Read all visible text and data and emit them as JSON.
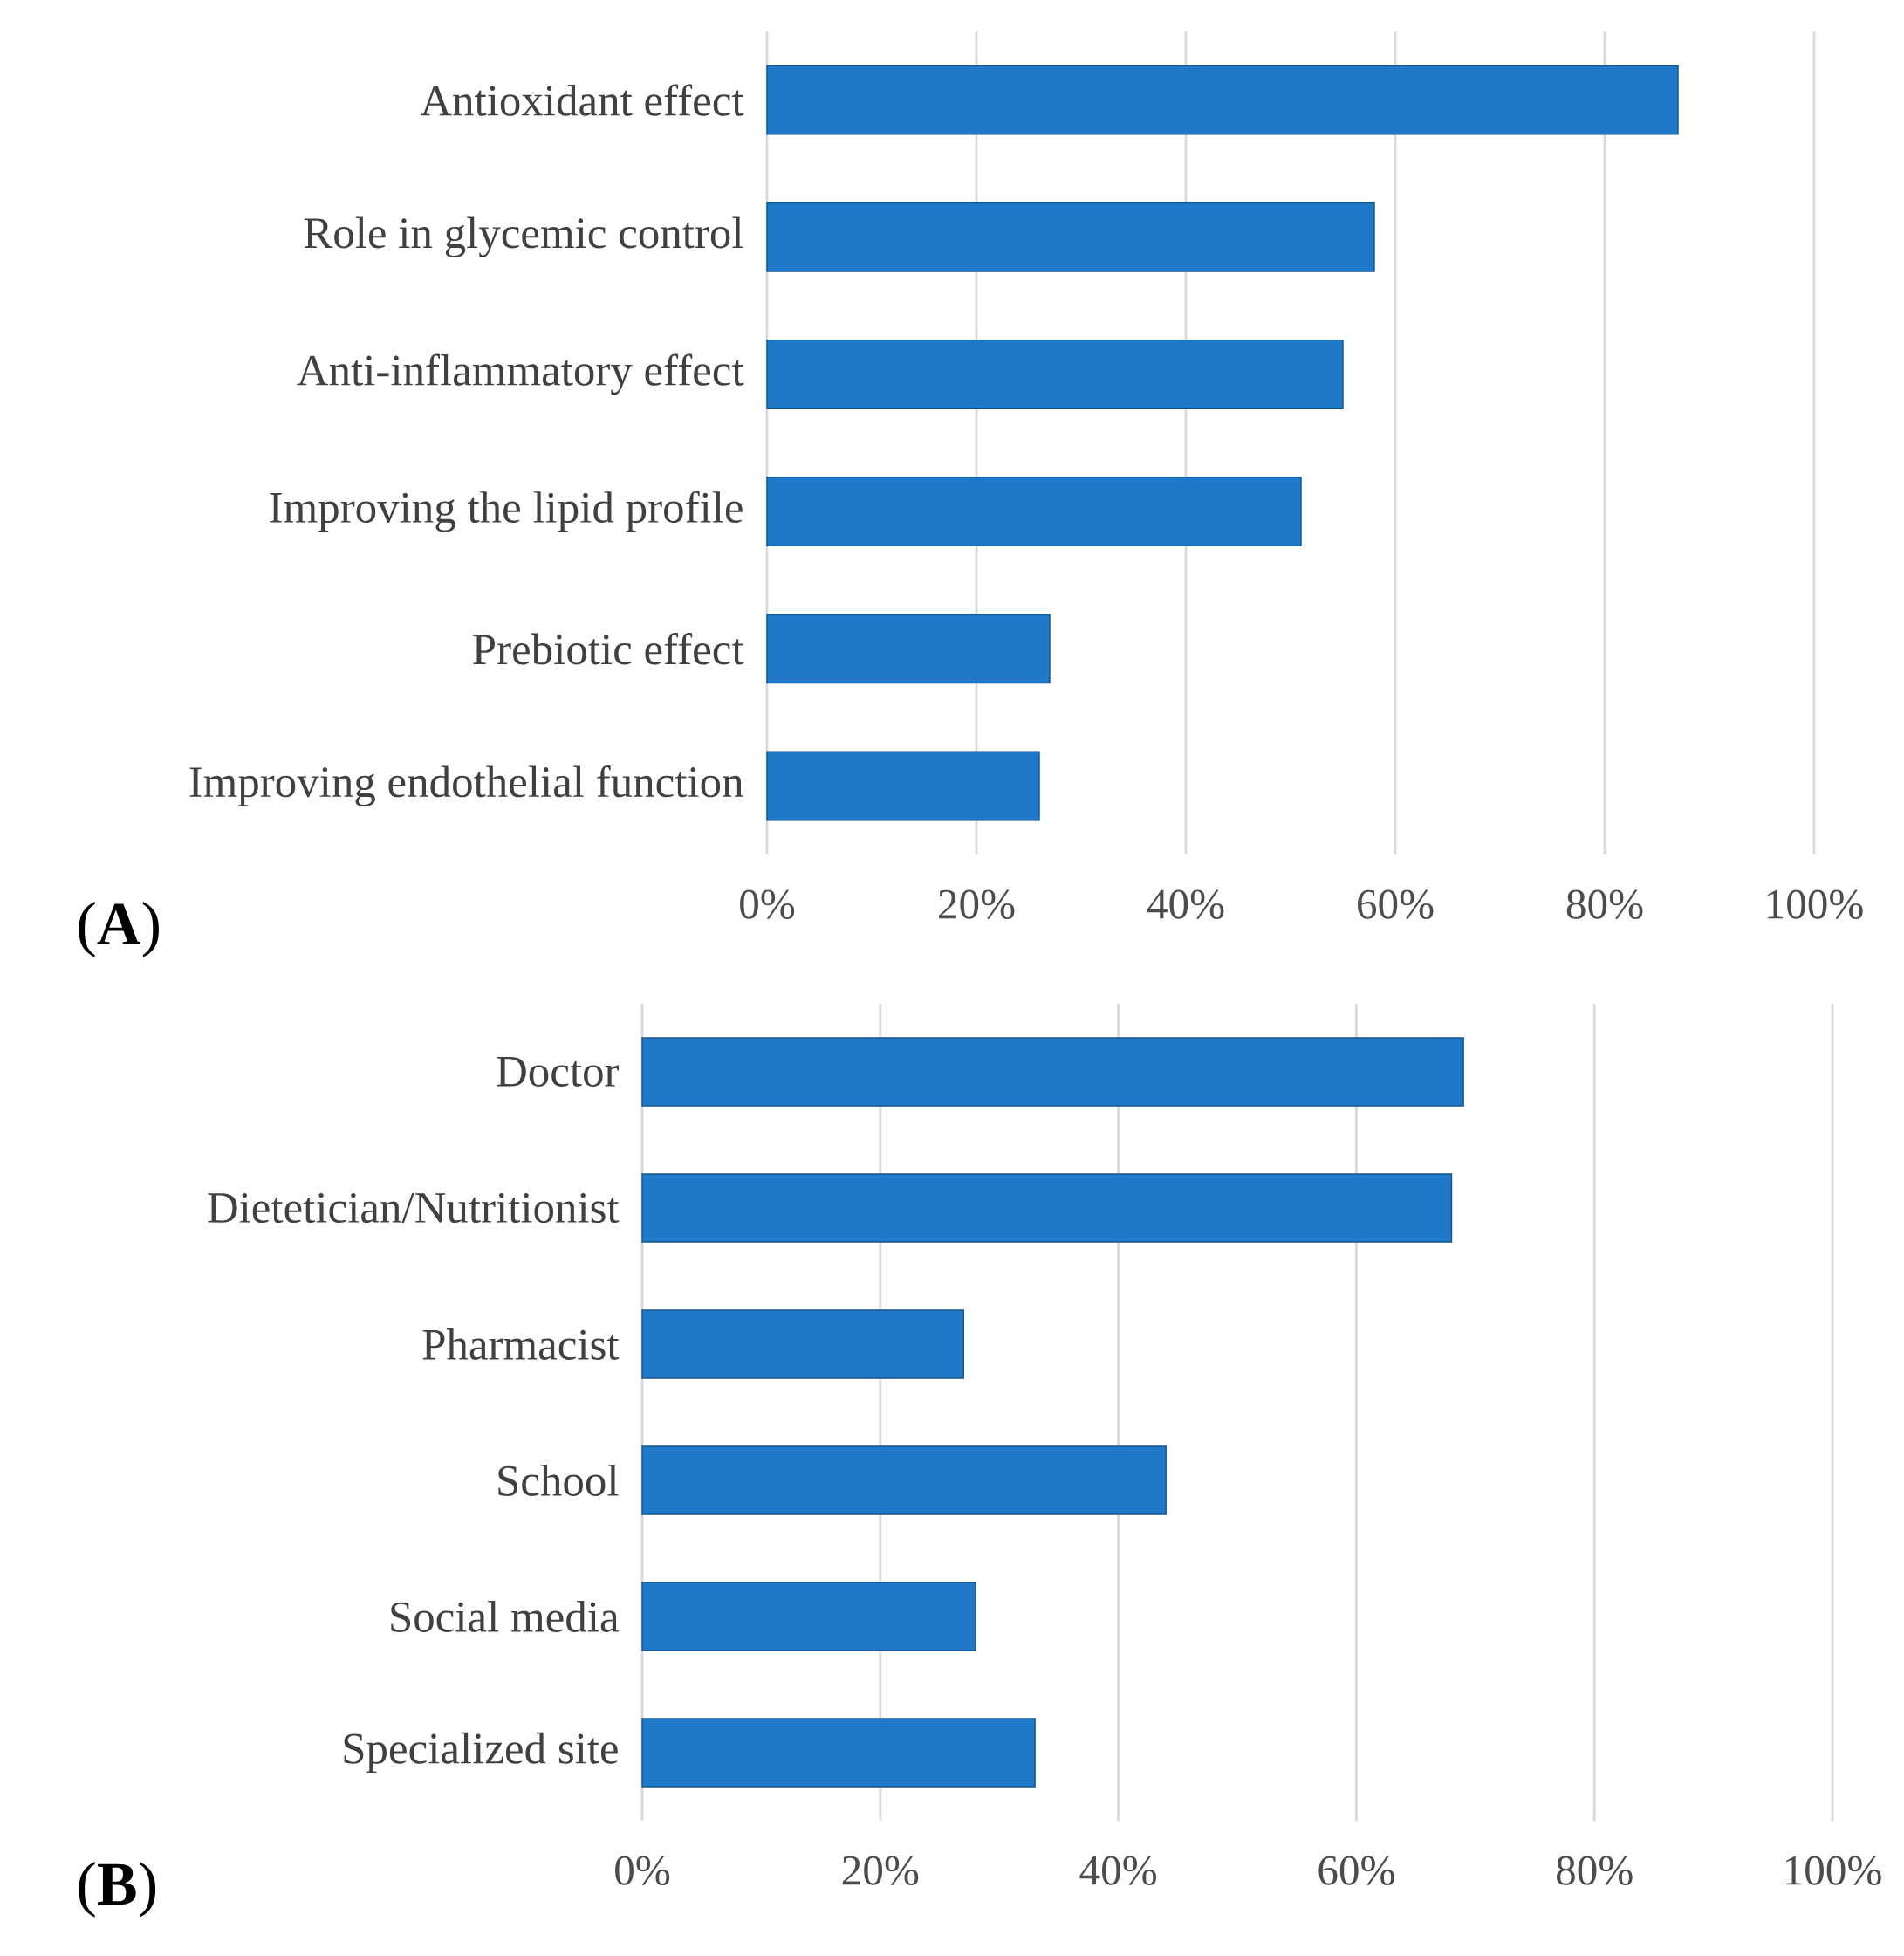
{
  "chart_data": [
    {
      "type": "bar",
      "orientation": "horizontal",
      "categories": [
        "Antioxidant effect",
        "Role in glycemic control",
        "Anti-inflammatory effect",
        "Improving the lipid profile",
        "Prebiotic effect",
        "Improving endothelial function"
      ],
      "values": [
        87,
        58,
        55,
        51,
        27,
        26
      ],
      "color": "#1f78c8",
      "xlim": [
        0,
        100
      ],
      "xticks": [
        {
          "value": 0,
          "label": "0%"
        },
        {
          "value": 20,
          "label": "20%"
        },
        {
          "value": 40,
          "label": "40%"
        },
        {
          "value": 60,
          "label": "60%"
        },
        {
          "value": 80,
          "label": "80%"
        },
        {
          "value": 100,
          "label": "100%"
        }
      ],
      "grid": "x",
      "annotations": [
        "(**A**)"
      ]
    },
    {
      "type": "bar",
      "orientation": "horizontal",
      "categories": [
        "Doctor",
        "Dietetician/Nutritionist",
        "Pharmacist",
        "School",
        "Social media",
        "Specialized site"
      ],
      "values": [
        69,
        68,
        27,
        44,
        28,
        33
      ],
      "color": "#1f78c8",
      "xlim": [
        0,
        100
      ],
      "xticks": [
        {
          "value": 0,
          "label": "0%"
        },
        {
          "value": 20,
          "label": "20%"
        },
        {
          "value": 40,
          "label": "40%"
        },
        {
          "value": 60,
          "label": "60%"
        },
        {
          "value": 80,
          "label": "80%"
        },
        {
          "value": 100,
          "label": "100%"
        }
      ],
      "grid": "x",
      "annotations": [
        "(**B**)"
      ]
    }
  ]
}
